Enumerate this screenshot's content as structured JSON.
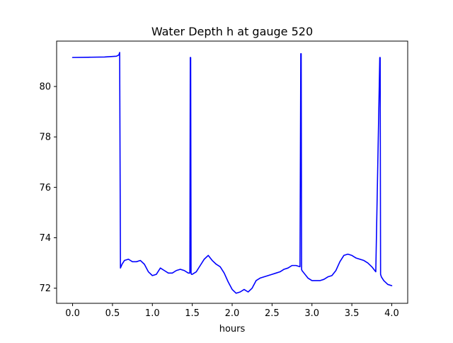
{
  "chart_data": {
    "type": "line",
    "title": "Water Depth h at gauge 520",
    "xlabel": "hours",
    "ylabel": "",
    "xlim": [
      -0.2,
      4.2
    ],
    "ylim": [
      71.4,
      81.8
    ],
    "x_ticks": [
      0.0,
      0.5,
      1.0,
      1.5,
      2.0,
      2.5,
      3.0,
      3.5,
      4.0
    ],
    "x_tick_labels": [
      "0.0",
      "0.5",
      "1.0",
      "1.5",
      "2.0",
      "2.5",
      "3.0",
      "3.5",
      "4.0"
    ],
    "y_ticks": [
      72,
      74,
      76,
      78,
      80
    ],
    "y_tick_labels": [
      "72",
      "74",
      "76",
      "78",
      "80"
    ],
    "grid": false,
    "series": [
      {
        "color": "#0000ff",
        "x": [
          0.0,
          0.2,
          0.4,
          0.55,
          0.58,
          0.59,
          0.6,
          0.62,
          0.65,
          0.7,
          0.75,
          0.8,
          0.85,
          0.9,
          0.95,
          1.0,
          1.05,
          1.1,
          1.15,
          1.2,
          1.25,
          1.3,
          1.35,
          1.4,
          1.45,
          1.47,
          1.475,
          1.48,
          1.485,
          1.49,
          1.5,
          1.55,
          1.6,
          1.65,
          1.7,
          1.75,
          1.8,
          1.85,
          1.9,
          1.95,
          2.0,
          2.05,
          2.1,
          2.15,
          2.2,
          2.25,
          2.3,
          2.35,
          2.4,
          2.45,
          2.5,
          2.55,
          2.6,
          2.65,
          2.7,
          2.75,
          2.8,
          2.85,
          2.86,
          2.865,
          2.87,
          2.875,
          2.9,
          2.95,
          3.0,
          3.05,
          3.1,
          3.15,
          3.2,
          3.25,
          3.3,
          3.35,
          3.4,
          3.45,
          3.5,
          3.55,
          3.6,
          3.65,
          3.7,
          3.75,
          3.8,
          3.85,
          3.855,
          3.86,
          3.865,
          3.87,
          3.9,
          3.95,
          4.0
        ],
        "y": [
          81.15,
          81.16,
          81.17,
          81.2,
          81.25,
          81.35,
          72.8,
          72.95,
          73.1,
          73.15,
          73.05,
          73.05,
          73.1,
          72.95,
          72.65,
          72.5,
          72.55,
          72.8,
          72.7,
          72.6,
          72.6,
          72.7,
          72.75,
          72.7,
          72.6,
          72.6,
          81.15,
          81.15,
          72.6,
          72.55,
          72.55,
          72.65,
          72.9,
          73.15,
          73.3,
          73.1,
          72.95,
          72.85,
          72.6,
          72.25,
          71.95,
          71.8,
          71.85,
          71.95,
          71.85,
          72.0,
          72.3,
          72.4,
          72.45,
          72.5,
          72.55,
          72.6,
          72.65,
          72.75,
          72.8,
          72.9,
          72.9,
          72.85,
          81.3,
          81.3,
          72.75,
          72.7,
          72.6,
          72.4,
          72.3,
          72.3,
          72.3,
          72.35,
          72.45,
          72.5,
          72.7,
          73.05,
          73.3,
          73.35,
          73.3,
          73.2,
          73.15,
          73.1,
          73.0,
          72.85,
          72.65,
          81.15,
          81.15,
          72.55,
          72.5,
          72.45,
          72.3,
          72.15,
          72.1
        ]
      }
    ]
  }
}
